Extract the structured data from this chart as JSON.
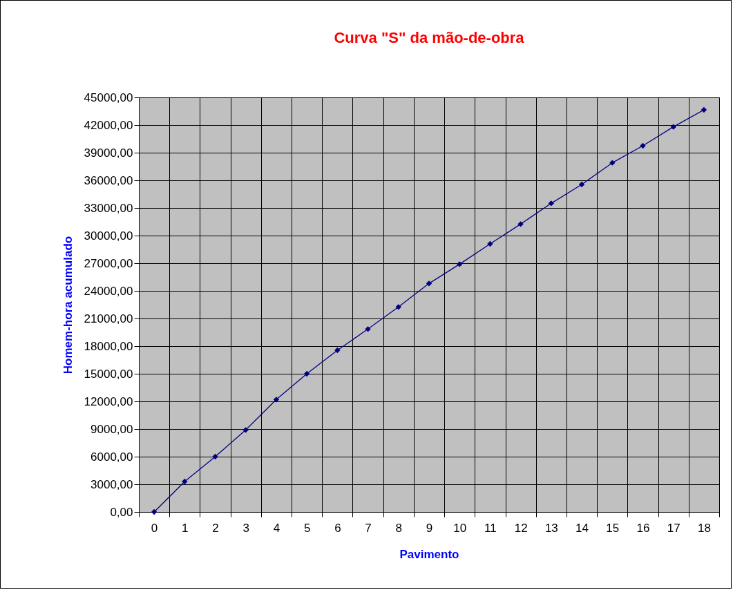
{
  "chart_data": {
    "type": "line",
    "title": "Curva \"S\" da mão-de-obra",
    "xlabel": "Pavimento",
    "ylabel": "Homem-hora acumulado",
    "x": [
      0,
      1,
      2,
      3,
      4,
      5,
      6,
      7,
      8,
      9,
      10,
      11,
      12,
      13,
      14,
      15,
      16,
      17,
      18
    ],
    "series": [
      {
        "color": "#000080",
        "values": [
          0,
          3300,
          6000,
          8900,
          12200,
          15000,
          17550,
          19850,
          22250,
          24800,
          26900,
          29100,
          31250,
          33500,
          35550,
          37900,
          39750,
          41800,
          43650
        ]
      }
    ],
    "xlim": [
      -0.5,
      18.5
    ],
    "xticks": [
      {
        "value": -0.5,
        "label": null
      },
      0,
      {
        "value": 0.5,
        "label": null
      },
      1,
      {
        "value": 1.5,
        "label": null
      },
      2,
      {
        "value": 2.5,
        "label": null
      },
      3,
      {
        "value": 3.5,
        "label": null
      },
      4,
      {
        "value": 4.5,
        "label": null
      },
      5,
      {
        "value": 5.5,
        "label": null
      },
      6,
      {
        "value": 6.5,
        "label": null
      },
      7,
      {
        "value": 7.5,
        "label": null
      },
      8,
      {
        "value": 8.5,
        "label": null
      },
      9,
      {
        "value": 9.5,
        "label": null
      },
      10,
      {
        "value": 10.5,
        "label": null
      },
      11,
      {
        "value": 11.5,
        "label": null
      },
      12,
      {
        "value": 12.5,
        "label": null
      },
      13,
      {
        "value": 13.5,
        "label": null
      },
      14,
      {
        "value": 14.5,
        "label": null
      },
      15,
      {
        "value": 15.5,
        "label": null
      },
      16,
      {
        "value": 16.5,
        "label": null
      },
      17,
      {
        "value": 17.5,
        "label": null
      },
      18,
      {
        "value": 18.5,
        "label": null
      }
    ],
    "ylim": [
      0,
      45000
    ],
    "yticks": [
      {
        "value": 0,
        "label": "0,00"
      },
      {
        "value": 3000,
        "label": "3000,00"
      },
      {
        "value": 6000,
        "label": "6000,00"
      },
      {
        "value": 9000,
        "label": "9000,00"
      },
      {
        "value": 12000,
        "label": "12000,00"
      },
      {
        "value": 15000,
        "label": "15000,00"
      },
      {
        "value": 18000,
        "label": "18000,00"
      },
      {
        "value": 21000,
        "label": "21000,00"
      },
      {
        "value": 24000,
        "label": "24000,00"
      },
      {
        "value": 27000,
        "label": "27000,00"
      },
      {
        "value": 30000,
        "label": "30000,00"
      },
      {
        "value": 33000,
        "label": "33000,00"
      },
      {
        "value": 36000,
        "label": "36000,00"
      },
      {
        "value": 39000,
        "label": "39000,00"
      },
      {
        "value": 42000,
        "label": "42000,00"
      },
      {
        "value": 45000,
        "label": "45000,00"
      }
    ],
    "grid": true,
    "legend": false,
    "marker": "diamond",
    "line_style": "solid"
  }
}
